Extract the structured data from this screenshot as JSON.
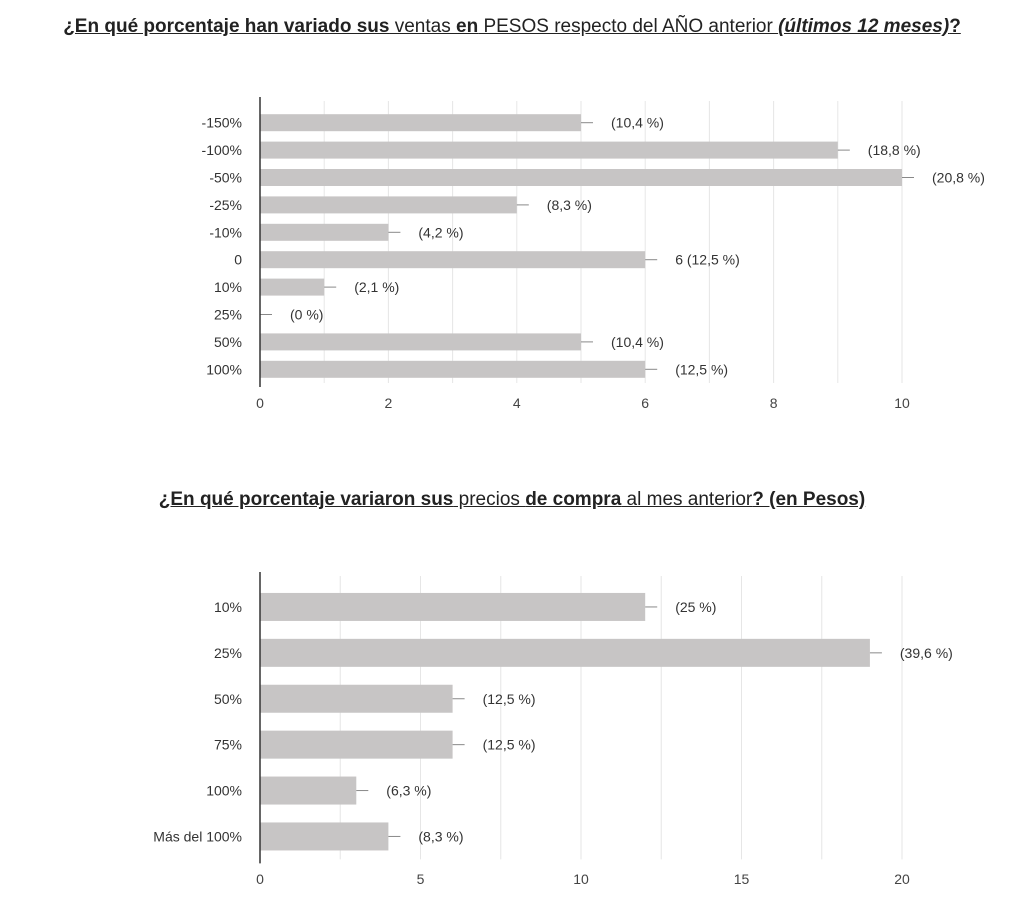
{
  "charts": [
    {
      "title_parts": [
        {
          "text": "¿En qué porcentaje han variado sus",
          "bold": true
        },
        {
          "text": " ventas ",
          "bold": false
        },
        {
          "text": "en",
          "bold": true
        },
        {
          "text": " PESOS respecto del AÑO anterior ",
          "bold": false
        },
        {
          "text": "(últimos 12 meses)",
          "bold": true,
          "italic": true
        },
        {
          "text": "?",
          "bold": true
        }
      ]
    },
    {
      "title_parts": [
        {
          "text": "¿En qué porcentaje variaron sus",
          "bold": true
        },
        {
          "text": " precios ",
          "bold": false
        },
        {
          "text": "de compra",
          "bold": true
        },
        {
          "text": " al mes anterior",
          "bold": false
        },
        {
          "text": "? (en Pesos)",
          "bold": true
        }
      ]
    }
  ],
  "chart_data": [
    {
      "type": "bar",
      "orientation": "horizontal",
      "title": "¿En qué porcentaje han variado sus ventas en PESOS respecto del AÑO anterior (últimos 12 meses)?",
      "categories": [
        "-150%",
        "-100%",
        "-50%",
        "-25%",
        "-10%",
        "0",
        "10%",
        "25%",
        "50%",
        "100%"
      ],
      "values": [
        5,
        9,
        10,
        4,
        2,
        6,
        1,
        0,
        5,
        6
      ],
      "data_labels": [
        "(10,4 %)",
        "(18,8 %)",
        "(20,8 %)",
        "(8,3 %)",
        "(4,2 %)",
        "6 (12,5 %)",
        "(2,1 %)",
        "(0 %)",
        "(10,4 %)",
        "(12,5 %)"
      ],
      "xlim": [
        0,
        10
      ],
      "xticks": [
        0,
        2,
        4,
        6,
        8,
        10
      ],
      "bar_color": "#c7c5c5",
      "grid": true
    },
    {
      "type": "bar",
      "orientation": "horizontal",
      "title": "¿En qué porcentaje variaron sus precios de compra al mes anterior? (en Pesos)",
      "categories": [
        "10%",
        "25%",
        "50%",
        "75%",
        "100%",
        "Más del 100%"
      ],
      "values": [
        12,
        19,
        6,
        6,
        3,
        4
      ],
      "data_labels": [
        "(25 %)",
        "(39,6 %)",
        "(12,5 %)",
        "(12,5 %)",
        "(6,3 %)",
        "(8,3 %)"
      ],
      "xlim": [
        0,
        20
      ],
      "xticks": [
        0,
        5,
        10,
        15,
        20
      ],
      "bar_color": "#c7c5c5",
      "grid": true
    }
  ]
}
